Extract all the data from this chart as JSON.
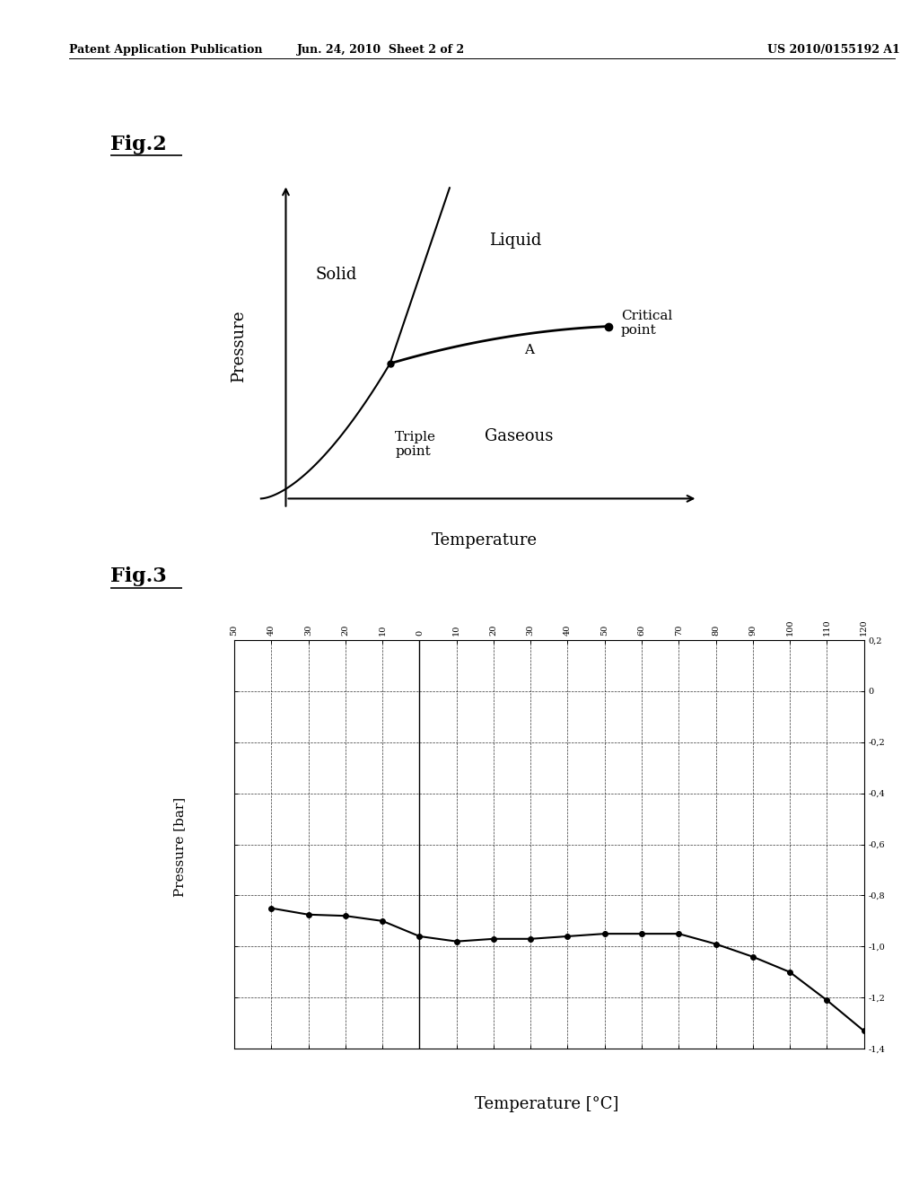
{
  "bg_color": "#ffffff",
  "header_left": "Patent Application Publication",
  "header_mid": "Jun. 24, 2010  Sheet 2 of 2",
  "header_right": "US 2010/0155192 A1",
  "fig2_title": "Fig.2",
  "fig2_xlabel": "Temperature",
  "fig2_ylabel": "Pressure",
  "fig2_label_solid": "Solid",
  "fig2_label_liquid": "Liquid",
  "fig2_label_gaseous": "Gaseous",
  "fig2_label_triple": "Triple\npoint",
  "fig2_label_critical": "Critical\npoint",
  "fig2_label_A": "A",
  "fig3_title": "Fig.3",
  "fig3_xlabel": "Temperature [°C]",
  "fig3_ylabel": "Pressure [bar]",
  "fig3_data_x": [
    -40,
    -30,
    -20,
    -10,
    0,
    10,
    20,
    30,
    40,
    50,
    60,
    70,
    80,
    90,
    100,
    110,
    120
  ],
  "fig3_data_y": [
    -0.85,
    -0.875,
    -0.88,
    -0.9,
    -0.96,
    -0.98,
    -0.97,
    -0.97,
    -0.96,
    -0.95,
    -0.95,
    -0.95,
    -0.99,
    -1.04,
    -1.1,
    -1.21,
    -1.33
  ]
}
